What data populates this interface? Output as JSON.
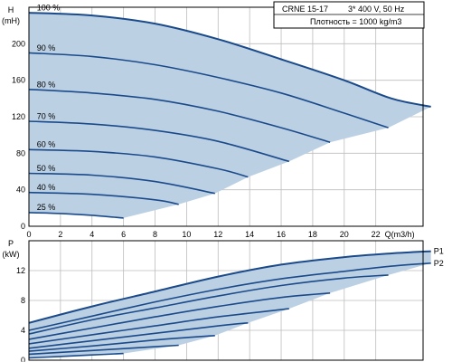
{
  "info_box": {
    "pump": "CRNE 15-17",
    "supply": "3* 400 V, 50 Hz",
    "density": "Плотность = 1000 kg/m3"
  },
  "colors": {
    "curve": "#1a4a8a",
    "fill": "#bcd0e4",
    "grid": "#bdbdbd",
    "axis": "#000000"
  },
  "chart_data": [
    {
      "type": "line",
      "name": "head",
      "ylabel": "H",
      "yunit": "(mH)",
      "xlabel": "Q(m3/h)",
      "xlim": [
        0,
        25
      ],
      "ylim": [
        0,
        240
      ],
      "xticks": [
        0,
        2,
        4,
        6,
        8,
        10,
        12,
        14,
        16,
        18,
        20,
        22
      ],
      "yticks": [
        0,
        40,
        80,
        120,
        160,
        200
      ],
      "grid": true,
      "fill_area": true,
      "series": [
        {
          "name": "100 %",
          "x": [
            0,
            4,
            8,
            12,
            16,
            20,
            23,
            25.5
          ],
          "y": [
            234,
            231,
            222,
            205,
            183,
            160,
            140,
            131
          ]
        },
        {
          "name": "90 %",
          "x": [
            0,
            4,
            8,
            12,
            16,
            20,
            22.8
          ],
          "y": [
            190,
            186,
            177,
            163,
            146,
            124,
            108
          ]
        },
        {
          "name": "80 %",
          "x": [
            0,
            4,
            8,
            12,
            16,
            19.1
          ],
          "y": [
            150,
            146,
            139,
            126,
            108,
            92
          ]
        },
        {
          "name": "70 %",
          "x": [
            0,
            4,
            8,
            12,
            16.5
          ],
          "y": [
            115,
            112,
            105,
            93,
            71
          ]
        },
        {
          "name": "60 %",
          "x": [
            0,
            4,
            8,
            12,
            13.9
          ],
          "y": [
            84,
            82,
            76,
            63,
            54
          ]
        },
        {
          "name": "50 %",
          "x": [
            0,
            4,
            8,
            11.8
          ],
          "y": [
            58,
            56,
            49,
            36
          ]
        },
        {
          "name": "40 %",
          "x": [
            0,
            4,
            8,
            9.5
          ],
          "y": [
            37,
            35,
            29,
            24
          ]
        },
        {
          "name": "25 %",
          "x": [
            0,
            2,
            4,
            6
          ],
          "y": [
            15,
            14,
            12,
            9
          ]
        }
      ]
    },
    {
      "type": "line",
      "name": "power",
      "ylabel": "P",
      "yunit": "(kW)",
      "xlim": [
        0,
        25
      ],
      "ylim": [
        0,
        16
      ],
      "yticks": [
        0,
        4,
        8,
        12
      ],
      "grid": true,
      "fill_area": true,
      "series": [
        {
          "name": "P1",
          "x": [
            0,
            4,
            8,
            12,
            16,
            20,
            23,
            25.5
          ],
          "y": [
            5.0,
            7.2,
            9.2,
            11.2,
            12.8,
            13.8,
            14.3,
            14.6
          ]
        },
        {
          "name": "P2",
          "x": [
            0,
            4,
            8,
            12,
            16,
            20,
            23,
            25.5
          ],
          "y": [
            4.0,
            5.9,
            7.8,
            9.5,
            10.9,
            11.9,
            12.6,
            13.0
          ]
        },
        {
          "name": "",
          "x": [
            0,
            4,
            8,
            12,
            16,
            20,
            22.8
          ],
          "y": [
            3.5,
            5.4,
            7.0,
            8.6,
            10.0,
            11.0,
            11.4
          ]
        },
        {
          "name": "",
          "x": [
            0,
            4,
            8,
            12,
            16,
            19.1
          ],
          "y": [
            2.8,
            4.3,
            5.8,
            7.2,
            8.4,
            9.0
          ]
        },
        {
          "name": "",
          "x": [
            0,
            4,
            8,
            12,
            16.5
          ],
          "y": [
            2.2,
            3.4,
            4.6,
            5.8,
            6.9
          ]
        },
        {
          "name": "",
          "x": [
            0,
            4,
            8,
            12,
            13.9
          ],
          "y": [
            1.6,
            2.6,
            3.6,
            4.6,
            5.0
          ]
        },
        {
          "name": "",
          "x": [
            0,
            4,
            8,
            11.8
          ],
          "y": [
            1.2,
            1.9,
            2.7,
            3.3
          ]
        },
        {
          "name": "",
          "x": [
            0,
            4,
            8,
            9.5
          ],
          "y": [
            0.8,
            1.3,
            1.8,
            2.0
          ]
        },
        {
          "name": "",
          "x": [
            0,
            2,
            4,
            6
          ],
          "y": [
            0.3,
            0.5,
            0.7,
            0.9
          ]
        }
      ]
    }
  ]
}
